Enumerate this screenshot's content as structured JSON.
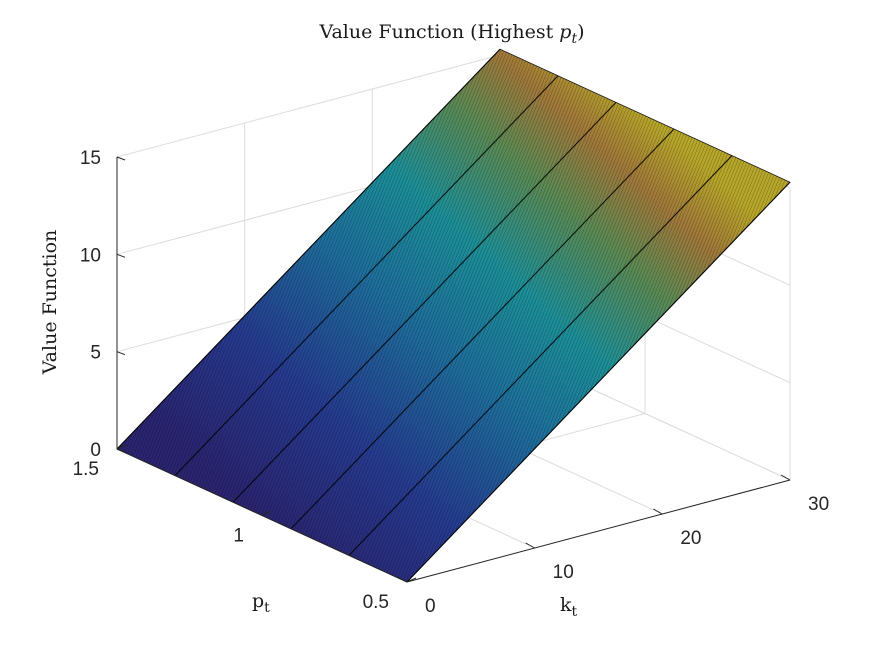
{
  "chart_data": {
    "type": "surface",
    "title": "Value Function (Highest p_t)",
    "title_main": "Value Function (Highest ",
    "title_var": "p",
    "title_sub": "t",
    "title_close": ")",
    "zlabel": "Value Function",
    "xlabel_var": "k",
    "xlabel_sub": "t",
    "ylabel_var": "p",
    "ylabel_sub": "t",
    "k_range": [
      0,
      30
    ],
    "p_range": [
      0.5,
      1.5
    ],
    "z_range": [
      0,
      15
    ],
    "k_ticks": [
      "0",
      "10",
      "20",
      "30"
    ],
    "p_ticks": [
      "0.5",
      "1",
      "1.5"
    ],
    "z_ticks": [
      "0",
      "5",
      "10",
      "15"
    ],
    "grid": true,
    "colormap": "parula",
    "surface": {
      "k_values": [
        0,
        30
      ],
      "p_values": [
        0.5,
        0.6,
        0.7,
        0.8,
        0.9,
        1.0,
        1.1,
        1.2,
        1.3,
        1.4,
        1.5
      ],
      "z_at_k_min": 0,
      "z_at_k_max": 15.3,
      "note_dependence": "value rises linearly with k_t and is nearly constant in p_t"
    },
    "colors": {
      "low": "#2c2470",
      "mid": "#1f8ea0",
      "high": "#b08a2a",
      "peak": "#c7b020"
    }
  }
}
